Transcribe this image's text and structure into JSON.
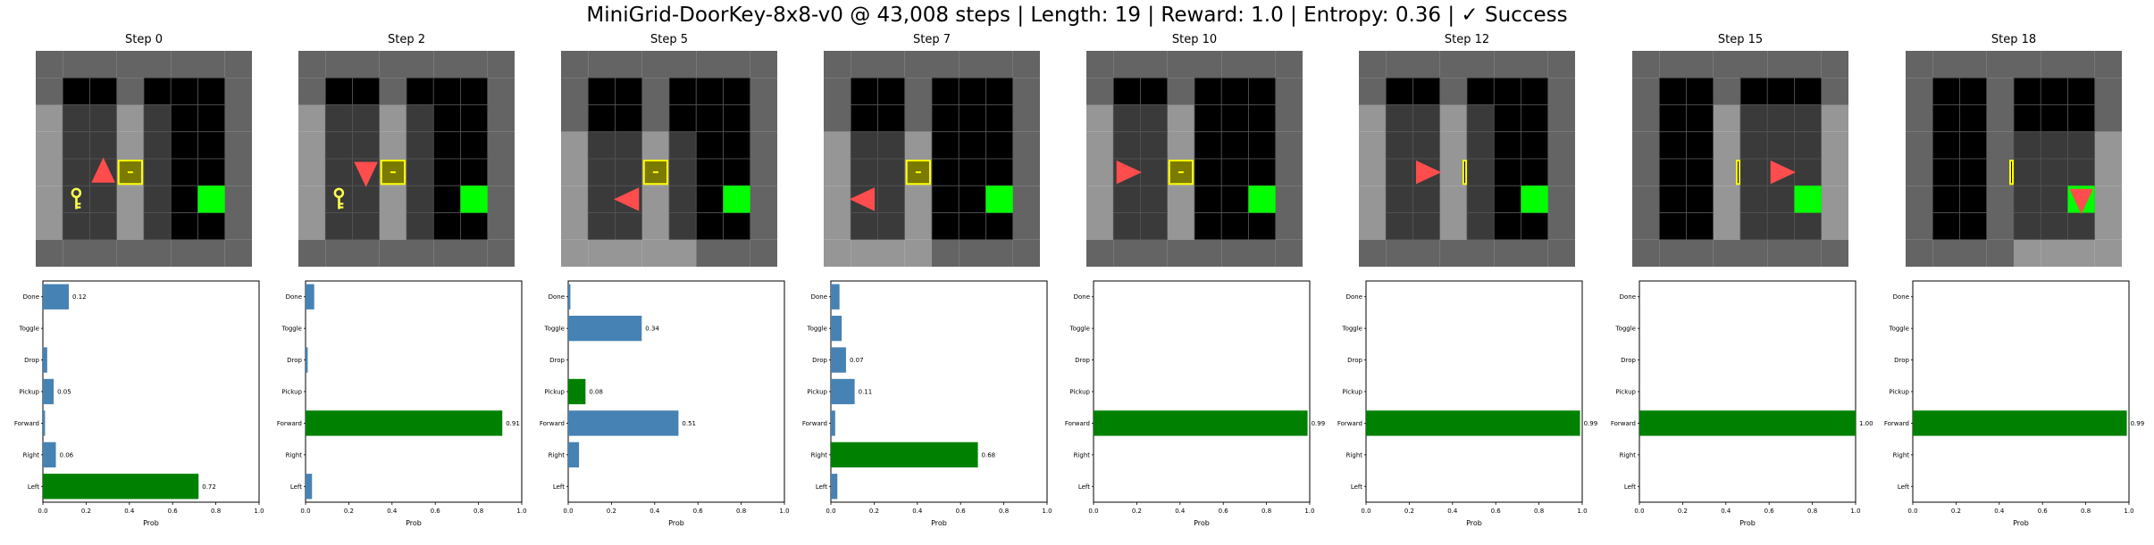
{
  "title": "MiniGrid-DoorKey-8x8-v0 @ 43,008 steps | Length: 19 | Reward: 1.0 | Entropy: 0.36 | ✓ Success",
  "colors": {
    "bar_default": "#4682b4",
    "bar_selected": "#008000",
    "agent": "#ff4d4d",
    "door": "#ffff00",
    "goal": "#00ff00",
    "key": "#ffff4d"
  },
  "chart_data": [
    {
      "type": "bar",
      "title": "Step 0",
      "categories": [
        "Left",
        "Right",
        "Forward",
        "Pickup",
        "Drop",
        "Toggle",
        "Done"
      ],
      "values": [
        0.72,
        0.06,
        0.01,
        0.05,
        0.02,
        0.0,
        0.12
      ],
      "labels": [
        "0.72",
        "0.06",
        "",
        "0.05",
        "",
        "",
        "0.12"
      ],
      "selected": "Left",
      "xlabel": "Prob",
      "xlim": [
        0,
        1
      ],
      "xticks": [
        "0.0",
        "0.2",
        "0.4",
        "0.6",
        "0.8",
        "1.0"
      ]
    },
    {
      "type": "bar",
      "title": "Step 2",
      "categories": [
        "Left",
        "Right",
        "Forward",
        "Pickup",
        "Drop",
        "Toggle",
        "Done"
      ],
      "values": [
        0.03,
        0.0,
        0.91,
        0.0,
        0.01,
        0.0,
        0.04
      ],
      "labels": [
        "",
        "",
        "0.91",
        "",
        "",
        "",
        ""
      ],
      "selected": "Forward",
      "xlabel": "Prob",
      "xlim": [
        0,
        1
      ],
      "xticks": [
        "0.0",
        "0.2",
        "0.4",
        "0.6",
        "0.8",
        "1.0"
      ]
    },
    {
      "type": "bar",
      "title": "Step 5",
      "categories": [
        "Left",
        "Right",
        "Forward",
        "Pickup",
        "Drop",
        "Toggle",
        "Done"
      ],
      "values": [
        0.0,
        0.05,
        0.51,
        0.08,
        0.0,
        0.34,
        0.01
      ],
      "labels": [
        "",
        "",
        "0.51",
        "0.08",
        "",
        "0.34",
        ""
      ],
      "selected": "Pickup",
      "xlabel": "Prob",
      "xlim": [
        0,
        1
      ],
      "xticks": [
        "0.0",
        "0.2",
        "0.4",
        "0.6",
        "0.8",
        "1.0"
      ]
    },
    {
      "type": "bar",
      "title": "Step 7",
      "categories": [
        "Left",
        "Right",
        "Forward",
        "Pickup",
        "Drop",
        "Toggle",
        "Done"
      ],
      "values": [
        0.03,
        0.68,
        0.02,
        0.11,
        0.07,
        0.05,
        0.04
      ],
      "labels": [
        "",
        "0.68",
        "",
        "0.11",
        "0.07",
        "",
        ""
      ],
      "selected": "Right",
      "xlabel": "Prob",
      "xlim": [
        0,
        1
      ],
      "xticks": [
        "0.0",
        "0.2",
        "0.4",
        "0.6",
        "0.8",
        "1.0"
      ]
    },
    {
      "type": "bar",
      "title": "Step 10",
      "categories": [
        "Left",
        "Right",
        "Forward",
        "Pickup",
        "Drop",
        "Toggle",
        "Done"
      ],
      "values": [
        0.0,
        0.0,
        0.99,
        0.0,
        0.0,
        0.0,
        0.0
      ],
      "labels": [
        "",
        "",
        "0.99",
        "",
        "",
        "",
        ""
      ],
      "selected": "Forward",
      "xlabel": "Prob",
      "xlim": [
        0,
        1
      ],
      "xticks": [
        "0.0",
        "0.2",
        "0.4",
        "0.6",
        "0.8",
        "1.0"
      ]
    },
    {
      "type": "bar",
      "title": "Step 12",
      "categories": [
        "Left",
        "Right",
        "Forward",
        "Pickup",
        "Drop",
        "Toggle",
        "Done"
      ],
      "values": [
        0.0,
        0.0,
        0.99,
        0.0,
        0.0,
        0.0,
        0.0
      ],
      "labels": [
        "",
        "",
        "0.99",
        "",
        "",
        "",
        ""
      ],
      "selected": "Forward",
      "xlabel": "Prob",
      "xlim": [
        0,
        1
      ],
      "xticks": [
        "0.0",
        "0.2",
        "0.4",
        "0.6",
        "0.8",
        "1.0"
      ]
    },
    {
      "type": "bar",
      "title": "Step 15",
      "categories": [
        "Left",
        "Right",
        "Forward",
        "Pickup",
        "Drop",
        "Toggle",
        "Done"
      ],
      "values": [
        0.0,
        0.0,
        1.0,
        0.0,
        0.0,
        0.0,
        0.0
      ],
      "labels": [
        "",
        "",
        "1.00",
        "",
        "",
        "",
        ""
      ],
      "selected": "Forward",
      "xlabel": "Prob",
      "xlim": [
        0,
        1
      ],
      "xticks": [
        "0.0",
        "0.2",
        "0.4",
        "0.6",
        "0.8",
        "1.0"
      ]
    },
    {
      "type": "bar",
      "title": "Step 18",
      "categories": [
        "Left",
        "Right",
        "Forward",
        "Pickup",
        "Drop",
        "Toggle",
        "Done"
      ],
      "values": [
        0.0,
        0.0,
        0.99,
        0.0,
        0.0,
        0.0,
        0.0
      ],
      "labels": [
        "",
        "",
        "0.99",
        "",
        "",
        "",
        ""
      ],
      "selected": "Forward",
      "xlabel": "Prob",
      "xlim": [
        0,
        1
      ],
      "xticks": [
        "0.0",
        "0.2",
        "0.4",
        "0.6",
        "0.8",
        "1.0"
      ]
    }
  ],
  "frames": [
    {
      "agent": [
        2,
        4
      ],
      "dir": "up",
      "door": "closed",
      "key": true
    },
    {
      "agent": [
        2,
        4
      ],
      "dir": "down",
      "door": "closed",
      "key": true
    },
    {
      "agent": [
        2,
        5
      ],
      "dir": "left",
      "door": "closed",
      "key": false
    },
    {
      "agent": [
        1,
        5
      ],
      "dir": "left",
      "door": "closed",
      "key": false
    },
    {
      "agent": [
        1,
        4
      ],
      "dir": "right",
      "door": "closed",
      "key": false
    },
    {
      "agent": [
        2,
        4
      ],
      "dir": "right",
      "door": "open",
      "key": false
    },
    {
      "agent": [
        5,
        4
      ],
      "dir": "right",
      "door": "open",
      "key": false
    },
    {
      "agent": [
        6,
        5
      ],
      "dir": "down",
      "door": "open",
      "key": false
    }
  ]
}
